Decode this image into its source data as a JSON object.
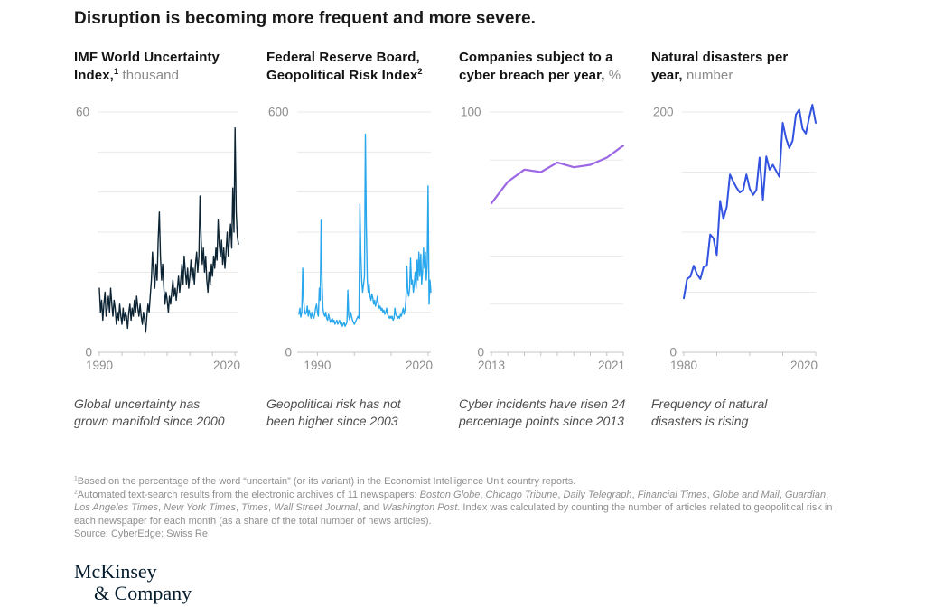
{
  "title": "Disruption is becoming more frequent and more severe.",
  "colors": {
    "gridline": "#eaeaea",
    "axis": "#c4c4c4",
    "label": "#8c8c8c"
  },
  "chart_data": [
    {
      "type": "line",
      "title": "IMF World Uncertainty Index",
      "footnote_ref": "1",
      "unit": "thousand",
      "title_segments": [
        {
          "t": "IMF World Uncertainty\nIndex,",
          "b": true
        },
        {
          "t": "1",
          "b": true,
          "sup": true
        },
        {
          "t": " thousand"
        }
      ],
      "caption": "Global uncertainty has\ngrown manifold since 2000",
      "color": "#0b2333",
      "stroke_width": 1.4,
      "ylim": [
        0,
        60
      ],
      "y_grid_step": 10,
      "y_top_label": "60",
      "y_bottom_label": "0",
      "x_range": [
        1990,
        2020.75
      ],
      "x_ticks": [
        1990,
        1995,
        2000,
        2005,
        2010,
        2015,
        2020
      ],
      "x_label_years": [
        1990,
        2020
      ],
      "x_labels": [
        "1990",
        "2020"
      ],
      "x_start": 1990,
      "x_step": 0.25,
      "values": [
        16,
        10,
        13,
        8,
        12,
        15,
        9,
        11,
        14,
        10,
        16,
        12,
        9,
        13,
        11,
        7,
        10,
        8,
        12,
        9,
        7,
        11,
        8,
        10,
        9,
        6,
        10,
        12,
        8,
        11,
        9,
        13,
        10,
        14,
        11,
        9,
        12,
        9,
        7,
        10,
        8,
        5,
        9,
        12,
        10,
        14,
        18,
        25,
        20,
        16,
        22,
        18,
        28,
        35,
        24,
        18,
        22,
        16,
        12,
        15,
        13,
        10,
        14,
        12,
        15,
        18,
        14,
        16,
        13,
        16,
        19,
        15,
        18,
        22,
        17,
        24,
        20,
        17,
        21,
        16,
        19,
        23,
        18,
        21,
        17,
        22,
        25,
        20,
        24,
        39,
        28,
        22,
        26,
        20,
        24,
        18,
        15,
        20,
        17,
        22,
        19,
        24,
        21,
        26,
        23,
        33,
        27,
        24,
        28,
        22,
        26,
        21,
        25,
        30,
        24,
        28,
        32,
        26,
        41,
        30,
        56,
        35,
        29,
        27
      ]
    },
    {
      "type": "line",
      "title": "Federal Reserve Board, Geopolitical Risk Index",
      "footnote_ref": "2",
      "unit": "",
      "title_segments": [
        {
          "t": "Federal Reserve Board,\nGeopolitical Risk Index",
          "b": true
        },
        {
          "t": "2",
          "b": true,
          "sup": true
        }
      ],
      "caption": "Geopolitical risk has not\nbeen higher since 2003",
      "color": "#28a7ec",
      "stroke_width": 1.4,
      "ylim": [
        0,
        600
      ],
      "y_grid_step": 100,
      "y_top_label": "600",
      "y_bottom_label": "0",
      "x_range": [
        1985,
        2020.75
      ],
      "x_ticks": [
        1990,
        2000,
        2010,
        2020
      ],
      "x_label_years": [
        1990,
        2020
      ],
      "x_labels": [
        "1990",
        "2020"
      ],
      "x_start": 1985,
      "x_step": 0.25,
      "values": [
        95,
        110,
        88,
        100,
        210,
        130,
        105,
        95,
        100,
        115,
        90,
        105,
        95,
        85,
        100,
        90,
        85,
        95,
        110,
        120,
        100,
        90,
        160,
        130,
        330,
        180,
        110,
        95,
        90,
        100,
        85,
        80,
        95,
        85,
        75,
        80,
        85,
        75,
        80,
        70,
        75,
        80,
        70,
        75,
        80,
        70,
        75,
        65,
        70,
        75,
        65,
        70,
        75,
        155,
        90,
        80,
        100,
        90,
        80,
        75,
        70,
        75,
        80,
        85,
        90,
        85,
        370,
        250,
        180,
        150,
        170,
        190,
        545,
        320,
        180,
        150,
        170,
        140,
        130,
        145,
        135,
        120,
        130,
        115,
        125,
        140,
        120,
        110,
        115,
        105,
        110,
        100,
        105,
        95,
        100,
        110,
        95,
        90,
        85,
        90,
        85,
        90,
        80,
        85,
        110,
        95,
        90,
        85,
        90,
        85,
        95,
        90,
        100,
        110,
        95,
        105,
        130,
        215,
        150,
        140,
        160,
        235,
        170,
        180,
        150,
        170,
        200,
        160,
        230,
        180,
        250,
        190,
        245,
        170,
        200,
        260,
        210,
        250,
        180,
        220,
        415,
        120,
        180,
        150
      ]
    },
    {
      "type": "line",
      "title": "Companies subject to a cyber breach per year",
      "footnote_ref": "",
      "unit": "%",
      "title_segments": [
        {
          "t": "Companies subject to a\ncyber breach per year,",
          "b": true
        },
        {
          "t": " %"
        }
      ],
      "caption": "Cyber incidents have risen 24\npercentage points since 2013",
      "color": "#9c68e3",
      "stroke_width": 2.2,
      "ylim": [
        0,
        100
      ],
      "y_grid_step": 20,
      "y_top_label": "100",
      "y_bottom_label": "0",
      "x_range": [
        2013,
        2021
      ],
      "x_ticks": [
        2013,
        2014,
        2015,
        2016,
        2017,
        2018,
        2019,
        2020,
        2021
      ],
      "x_label_years": [
        2013,
        2021
      ],
      "x_labels": [
        "2013",
        "2021"
      ],
      "x_start": 2013,
      "x_step": 1,
      "values": [
        62,
        71,
        76,
        75,
        79,
        77,
        78,
        81,
        86
      ]
    },
    {
      "type": "line",
      "title": "Natural disasters per year",
      "footnote_ref": "",
      "unit": "number",
      "title_segments": [
        {
          "t": "Natural disasters per\nyear,",
          "b": true
        },
        {
          "t": " number"
        }
      ],
      "caption": "Frequency of natural\ndisasters is rising",
      "color": "#3253e0",
      "stroke_width": 2,
      "ylim": [
        0,
        200
      ],
      "y_grid_step": 50,
      "y_top_label": "200",
      "y_bottom_label": "0",
      "x_range": [
        1980,
        2020
      ],
      "x_ticks": [
        1980,
        1990,
        2000,
        2010,
        2020
      ],
      "x_label_years": [
        1980,
        2020
      ],
      "x_labels": [
        "1980",
        "2020"
      ],
      "x_start": 1980,
      "x_step": 1,
      "values": [
        45,
        61,
        63,
        72,
        65,
        61,
        71,
        72,
        98,
        95,
        81,
        126,
        111,
        121,
        148,
        142,
        137,
        133,
        135,
        148,
        136,
        131,
        135,
        162,
        127,
        163,
        152,
        156,
        151,
        146,
        191,
        178,
        170,
        176,
        198,
        202,
        186,
        182,
        195,
        206,
        191
      ]
    }
  ],
  "footnotes": [
    {
      "segments": [
        {
          "t": "1",
          "sup": true
        },
        {
          "t": "Based on the percentage of the word “uncertain” (or its variant) in the Economist Intelligence Unit country reports."
        }
      ]
    },
    {
      "segments": [
        {
          "t": "2",
          "sup": true
        },
        {
          "t": "Automated text-search results from the electronic archives of 11 newspapers: "
        },
        {
          "t": "Boston Globe",
          "i": true
        },
        {
          "t": ", "
        },
        {
          "t": "Chicago Tribune",
          "i": true
        },
        {
          "t": ", "
        },
        {
          "t": "Daily Telegraph",
          "i": true
        },
        {
          "t": ", "
        },
        {
          "t": "Financial Times",
          "i": true
        },
        {
          "t": ", "
        },
        {
          "t": "Globe and Mail",
          "i": true
        },
        {
          "t": ", "
        },
        {
          "t": "Guardian",
          "i": true
        },
        {
          "t": ", "
        },
        {
          "t": "Los Angeles Times",
          "i": true
        },
        {
          "t": ", "
        },
        {
          "t": "New York Times",
          "i": true
        },
        {
          "t": ", "
        },
        {
          "t": "Times",
          "i": true
        },
        {
          "t": ", "
        },
        {
          "t": "Wall Street Journal",
          "i": true
        },
        {
          "t": ", and "
        },
        {
          "t": "Washington Post",
          "i": true
        },
        {
          "t": ". Index was calculated by counting the number of articles related to geopolitical risk in each newspaper for each month (as a share of the total number of news articles)."
        }
      ]
    }
  ],
  "source": "Source: CyberEdge; Swiss Re",
  "logo": {
    "line1": "McKinsey",
    "line2": "& Company"
  }
}
